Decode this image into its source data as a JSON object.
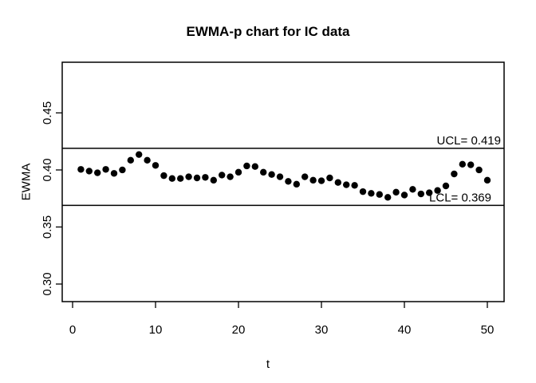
{
  "chart_data": {
    "type": "scatter",
    "title": "EWMA-p chart for IC data",
    "xlabel": "t",
    "ylabel": "EWMA",
    "grid": false,
    "legend": "none",
    "point_color": "#000000",
    "line_color": "#000000",
    "background_color": "#ffffff",
    "xlim": [
      -1.25,
      52.02
    ],
    "ylim": [
      0.2846,
      0.4944
    ],
    "xticks": {
      "values": [
        0,
        10,
        20,
        30,
        40,
        50
      ],
      "labels": [
        "0",
        "10",
        "20",
        "30",
        "40",
        "50"
      ]
    },
    "yticks": {
      "values": [
        0.3,
        0.35,
        0.4,
        0.45
      ],
      "labels": [
        "0.30",
        "0.35",
        "0.40",
        "0.45"
      ]
    },
    "control_limits": {
      "ucl": {
        "value": 0.419,
        "label": "UCL= 0.419"
      },
      "lcl": {
        "value": 0.369,
        "label": "LCL= 0.369"
      }
    },
    "x": [
      1,
      2,
      3,
      4,
      5,
      6,
      7,
      8,
      9,
      10,
      11,
      12,
      13,
      14,
      15,
      16,
      17,
      18,
      19,
      20,
      21,
      22,
      23,
      24,
      25,
      26,
      27,
      28,
      29,
      30,
      31,
      32,
      33,
      34,
      35,
      36,
      37,
      38,
      39,
      40,
      41,
      42,
      43,
      44,
      45,
      46,
      47,
      48,
      49,
      50
    ],
    "y": [
      0.4005,
      0.399,
      0.3975,
      0.4005,
      0.397,
      0.4,
      0.4085,
      0.4135,
      0.4085,
      0.404,
      0.395,
      0.3925,
      0.3925,
      0.394,
      0.393,
      0.3935,
      0.391,
      0.3955,
      0.394,
      0.398,
      0.4035,
      0.403,
      0.398,
      0.396,
      0.394,
      0.39,
      0.3875,
      0.394,
      0.391,
      0.3905,
      0.393,
      0.389,
      0.387,
      0.3865,
      0.381,
      0.3795,
      0.3785,
      0.376,
      0.3805,
      0.378,
      0.383,
      0.379,
      0.38,
      0.382,
      0.386,
      0.3965,
      0.405,
      0.4045,
      0.4,
      0.391
    ]
  }
}
